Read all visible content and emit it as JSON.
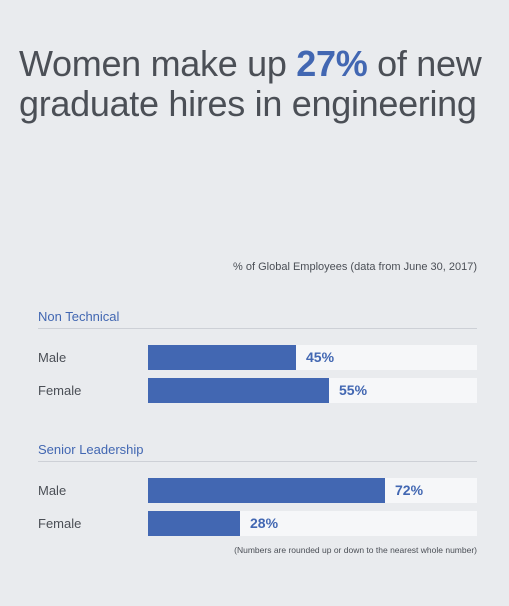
{
  "headline": {
    "before": "Women make up ",
    "highlight": "27%",
    "after": " of new graduate hires in engineering"
  },
  "subtitle": "% of Global Employees (data from June 30, 2017)",
  "footnote": "(Numbers are rounded up or down to the nearest whole number)",
  "colors": {
    "accent": "#4267b2",
    "background": "#e9ebee",
    "track": "#f6f7f9",
    "text": "#4b4f56"
  },
  "chart_data": {
    "type": "bar",
    "orientation": "horizontal",
    "xlim": [
      0,
      100
    ],
    "grid": false,
    "groups": [
      {
        "name": "Non Technical",
        "bars": [
          {
            "label": "Male",
            "value": 45,
            "display": "45%"
          },
          {
            "label": "Female",
            "value": 55,
            "display": "55%"
          }
        ]
      },
      {
        "name": "Senior Leadership",
        "bars": [
          {
            "label": "Male",
            "value": 72,
            "display": "72%"
          },
          {
            "label": "Female",
            "value": 28,
            "display": "28%"
          }
        ]
      }
    ]
  }
}
